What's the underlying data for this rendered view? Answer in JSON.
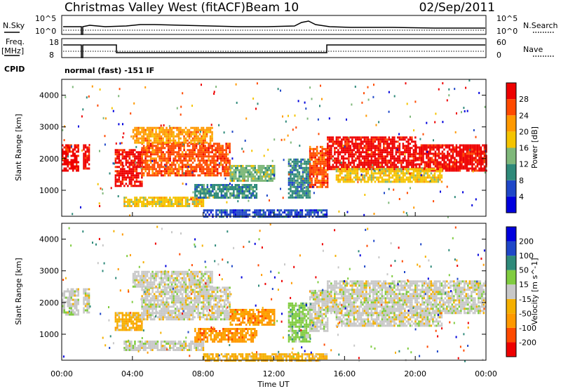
{
  "header": {
    "station": "Christmas Valley West (fitACF)",
    "beam": "Beam 10",
    "date": "02/Sep/2011"
  },
  "top_panels": {
    "nsky_label": "N.Sky",
    "nsky_ticks": [
      "10^5",
      "10^0"
    ],
    "nsearch_label": "N.Search",
    "nsearch_ticks": [
      "10^5",
      "10^0"
    ],
    "freq_label_1": "Freq.",
    "freq_label_2": "[MHz]",
    "freq_ticks": [
      "18",
      "8"
    ],
    "nave_label": "Nave",
    "nave_ticks": [
      "60",
      "0"
    ],
    "cpid_label": "CPID",
    "cpid_value": "normal (fast) -151 IF"
  },
  "chart_data": [
    {
      "type": "heatmap",
      "title": "Power",
      "ylabel": "Slant Range [km]",
      "ylim": [
        180,
        4500
      ],
      "yticks": [
        "4000",
        "3000",
        "2000",
        "1000"
      ],
      "xlim_hours": [
        0,
        24
      ],
      "colorbar_label": "Power [dB]",
      "colorbar_ticks": [
        "28",
        "24",
        "20",
        "16",
        "12",
        "8",
        "4"
      ],
      "colorbar_range": [
        0,
        30
      ],
      "colors": [
        "#0000dd",
        "#1f47c8",
        "#2f8a7a",
        "#7fb87a",
        "#f5c400",
        "#ff9900",
        "#ff4a00",
        "#ee0000"
      ],
      "regions": [
        {
          "t0": 0.0,
          "t1": 0.9,
          "r0": 1650,
          "r1": 2450,
          "level": 7
        },
        {
          "t0": 1.2,
          "t1": 1.5,
          "r0": 1700,
          "r1": 2450,
          "level": 7
        },
        {
          "t0": 3.0,
          "t1": 4.5,
          "r0": 1150,
          "r1": 2300,
          "level": 7
        },
        {
          "t0": 4.5,
          "t1": 9.5,
          "r0": 1500,
          "r1": 2500,
          "level": 6
        },
        {
          "t0": 4.0,
          "t1": 8.5,
          "r0": 2500,
          "r1": 3000,
          "level": 5
        },
        {
          "t0": 3.5,
          "t1": 8.0,
          "r0": 500,
          "r1": 800,
          "level": 4
        },
        {
          "t0": 7.5,
          "t1": 11.0,
          "r0": 800,
          "r1": 1200,
          "level": 2
        },
        {
          "t0": 9.5,
          "t1": 12.0,
          "r0": 1300,
          "r1": 1800,
          "level": 3
        },
        {
          "t0": 12.8,
          "t1": 14.0,
          "r0": 800,
          "r1": 2000,
          "level": 2
        },
        {
          "t0": 14.0,
          "t1": 15.0,
          "r0": 1100,
          "r1": 2400,
          "level": 6
        },
        {
          "t0": 15.0,
          "t1": 20.0,
          "r0": 1700,
          "r1": 2700,
          "level": 7
        },
        {
          "t0": 20.0,
          "t1": 24.0,
          "r0": 1650,
          "r1": 2450,
          "level": 7
        },
        {
          "t0": 15.5,
          "t1": 21.5,
          "r0": 1300,
          "r1": 1700,
          "level": 4
        },
        {
          "t0": 8.0,
          "t1": 15.0,
          "r0": 200,
          "r1": 400,
          "level": 1
        }
      ]
    },
    {
      "type": "heatmap",
      "title": "Velocity",
      "ylabel": "Slant Range [km]",
      "ylim": [
        180,
        4500
      ],
      "yticks": [
        "4000",
        "3000",
        "2000",
        "1000"
      ],
      "xlim_hours": [
        0,
        24
      ],
      "xticks": [
        "00:00",
        "04:00",
        "08:00",
        "12:00",
        "16:00",
        "20:00",
        "00:00"
      ],
      "xlabel": "Time UT",
      "colorbar_label": "Velocity [m s^-1]",
      "colorbar_ticks": [
        "200",
        "100",
        "50",
        "15",
        "-15",
        "-50",
        "-100",
        "-200"
      ],
      "colorbar_range": [
        -250,
        250
      ],
      "colors": [
        "#ee0000",
        "#ff4a00",
        "#ff9900",
        "#f5b000",
        "#c8c8c8",
        "#80cc40",
        "#2f8a7a",
        "#1f47c8",
        "#0000dd"
      ],
      "regions": [
        {
          "t0": 0.0,
          "t1": 0.9,
          "r0": 1650,
          "r1": 2450,
          "level": 4
        },
        {
          "t0": 1.2,
          "t1": 1.5,
          "r0": 1700,
          "r1": 2450,
          "level": 4
        },
        {
          "t0": 3.0,
          "t1": 4.5,
          "r0": 1150,
          "r1": 1700,
          "level": 3
        },
        {
          "t0": 4.5,
          "t1": 9.5,
          "r0": 1500,
          "r1": 2500,
          "level": 4
        },
        {
          "t0": 4.0,
          "t1": 8.5,
          "r0": 2500,
          "r1": 3000,
          "level": 4
        },
        {
          "t0": 3.5,
          "t1": 8.0,
          "r0": 500,
          "r1": 800,
          "level": 4
        },
        {
          "t0": 9.5,
          "t1": 12.0,
          "r0": 1300,
          "r1": 1800,
          "level": 2
        },
        {
          "t0": 7.5,
          "t1": 11.0,
          "r0": 800,
          "r1": 1200,
          "level": 2
        },
        {
          "t0": 12.8,
          "t1": 14.0,
          "r0": 800,
          "r1": 2000,
          "level": 5
        },
        {
          "t0": 14.0,
          "t1": 15.0,
          "r0": 1100,
          "r1": 2400,
          "level": 4
        },
        {
          "t0": 15.0,
          "t1": 24.0,
          "r0": 1650,
          "r1": 2700,
          "level": 4
        },
        {
          "t0": 15.5,
          "t1": 21.5,
          "r0": 1300,
          "r1": 1700,
          "level": 4
        },
        {
          "t0": 8.0,
          "t1": 15.0,
          "r0": 200,
          "r1": 400,
          "level": 3
        }
      ]
    }
  ]
}
